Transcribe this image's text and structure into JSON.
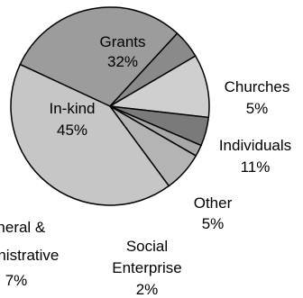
{
  "chart_data": {
    "type": "pie",
    "title": "",
    "slices": [
      {
        "label": "Grants",
        "percent_label": "32%",
        "value": 32,
        "color": "#9c9c9c"
      },
      {
        "label": "Churches",
        "percent_label": "5%",
        "value": 5,
        "color": "#8a8a8a"
      },
      {
        "label": "Individuals",
        "percent_label": "11%",
        "value": 11,
        "color": "#cfcfcf"
      },
      {
        "label": "Other",
        "percent_label": "5%",
        "value": 5,
        "color": "#7a7a7a"
      },
      {
        "label": "Social Enterprise",
        "label_lines": [
          "Social",
          "Enterprise"
        ],
        "percent_label": "2%",
        "value": 2,
        "color": "#a8a8a8"
      },
      {
        "label": "General & Administrative",
        "label_lines": [
          "General &",
          "Administrative"
        ],
        "percent_label": "7%",
        "value": 7,
        "color": "#b4b4b4"
      },
      {
        "label": "In-kind",
        "percent_label": "45%",
        "value": 45,
        "color": "#c6c6c6"
      }
    ],
    "legend": "none",
    "labels": "on-chart"
  }
}
